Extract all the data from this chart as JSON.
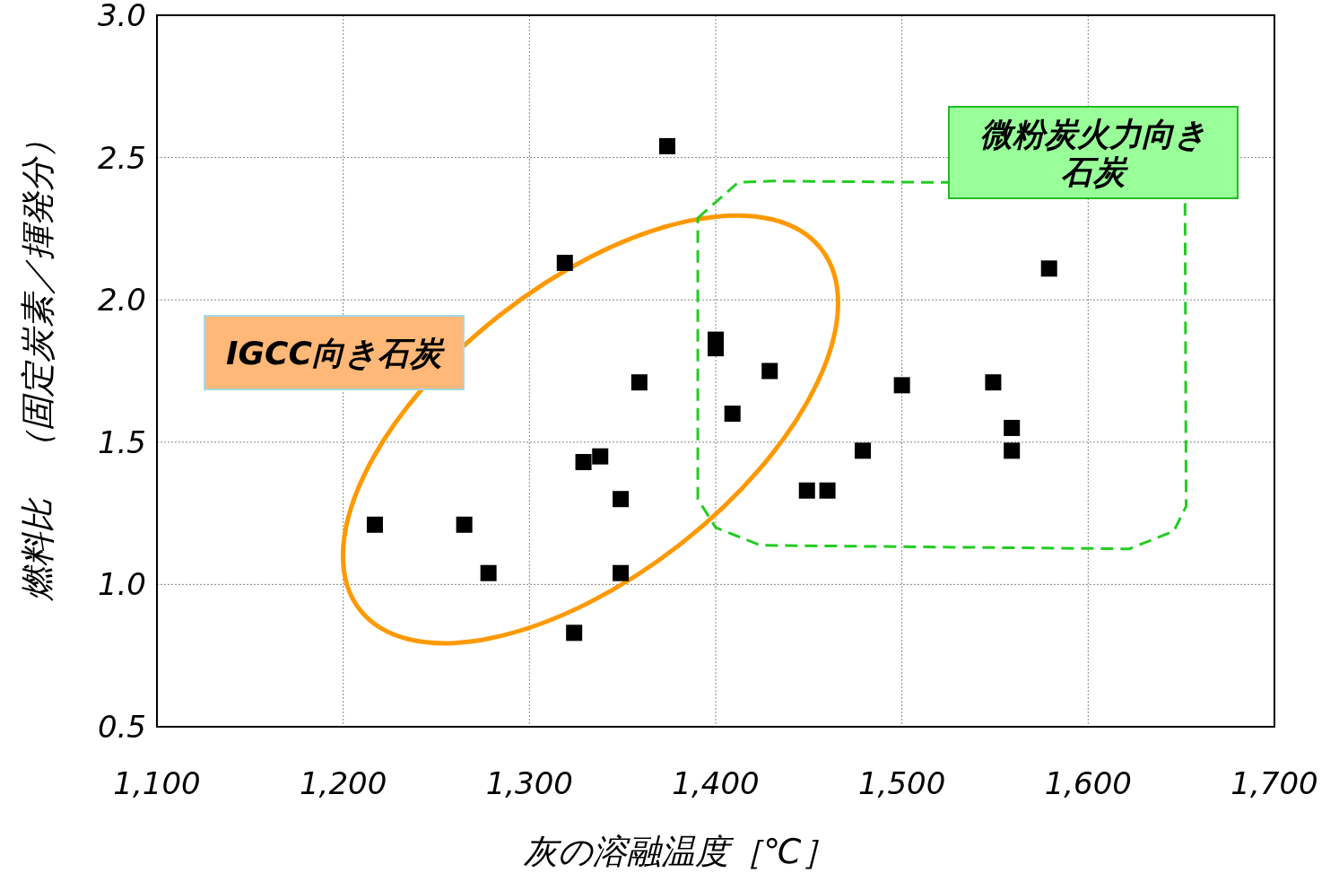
{
  "chart_data": {
    "type": "scatter",
    "xlabel": "灰の溶融温度［℃］",
    "ylabel": "燃料比　（固定炭素／揮発分）",
    "xlim": [
      1100,
      1700
    ],
    "ylim": [
      0.5,
      3.0
    ],
    "xticks": [
      {
        "value": 1100,
        "label": "1,100"
      },
      {
        "value": 1200,
        "label": "1,200"
      },
      {
        "value": 1300,
        "label": "1,300"
      },
      {
        "value": 1400,
        "label": "1,400"
      },
      {
        "value": 1500,
        "label": "1,500"
      },
      {
        "value": 1600,
        "label": "1,600"
      },
      {
        "value": 1700,
        "label": "1,700"
      }
    ],
    "yticks": [
      {
        "value": 0.5,
        "label": "0.5"
      },
      {
        "value": 1.0,
        "label": "1.0"
      },
      {
        "value": 1.5,
        "label": "1.5"
      },
      {
        "value": 2.0,
        "label": "2.0"
      },
      {
        "value": 2.5,
        "label": "2.5"
      },
      {
        "value": 3.0,
        "label": "3.0"
      }
    ],
    "grid": true,
    "marker": "square",
    "series": [
      {
        "color": "#000000",
        "x": [
          1217,
          1265,
          1278,
          1319,
          1329,
          1338,
          1349,
          1349,
          1324,
          1359,
          1374,
          1400,
          1400,
          1409,
          1429,
          1449,
          1460,
          1479,
          1500,
          1549,
          1559,
          1559,
          1579
        ],
        "values": [
          1.21,
          1.21,
          1.04,
          2.13,
          1.43,
          1.45,
          1.3,
          1.04,
          0.83,
          1.71,
          2.54,
          1.86,
          1.83,
          1.6,
          1.75,
          1.33,
          1.33,
          1.47,
          1.7,
          1.71,
          1.55,
          1.47,
          2.11
        ]
      }
    ],
    "annotations": [
      "IGCC向き石炭",
      "微粉炭火力向き石炭"
    ]
  }
}
